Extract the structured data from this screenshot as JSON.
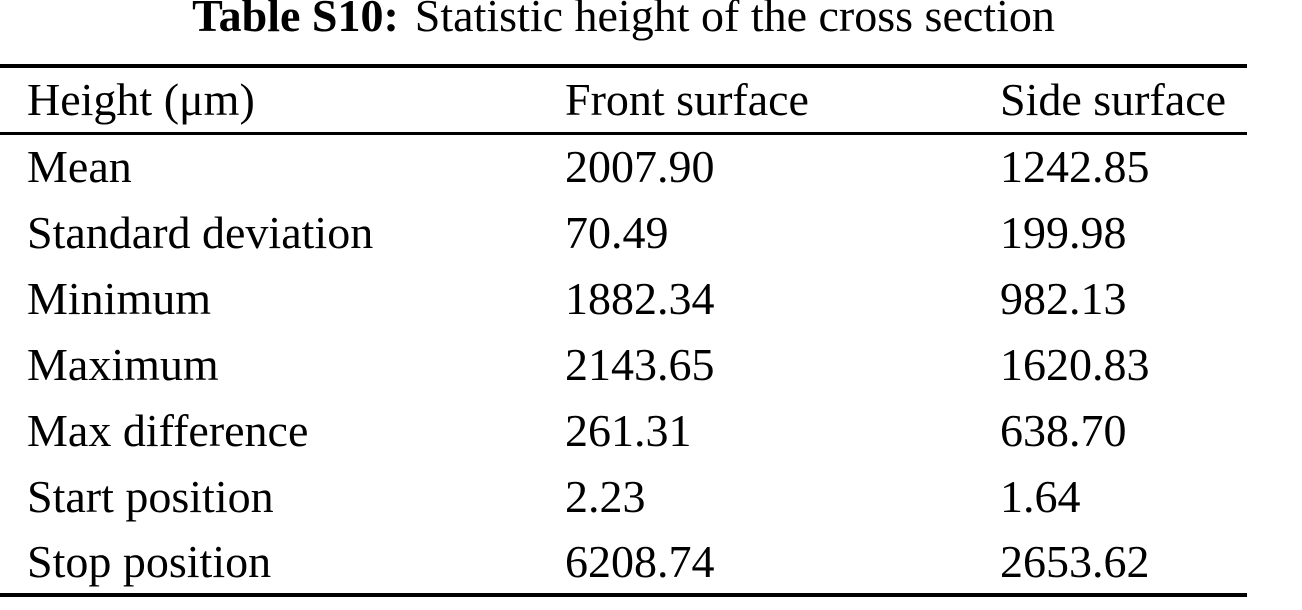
{
  "title": {
    "label": "Table S10:",
    "text": "Statistic height of the cross section"
  },
  "table": {
    "columns": [
      "Height (μm)",
      "Front surface",
      "Side surface"
    ],
    "rows": [
      {
        "stat": "Mean",
        "front": "2007.90",
        "side": "1242.85"
      },
      {
        "stat": "Standard deviation",
        "front": "70.49",
        "side": "199.98"
      },
      {
        "stat": "Minimum",
        "front": "1882.34",
        "side": "982.13"
      },
      {
        "stat": "Maximum",
        "front": "2143.65",
        "side": "1620.83"
      },
      {
        "stat": "Max difference",
        "front": "261.31",
        "side": "638.70"
      },
      {
        "stat": "Start position",
        "front": "2.23",
        "side": "1.64"
      },
      {
        "stat": "Stop position",
        "front": "6208.74",
        "side": "2653.62"
      }
    ]
  },
  "colors": {
    "text": "#000000",
    "background": "#ffffff",
    "rule": "#000000"
  }
}
